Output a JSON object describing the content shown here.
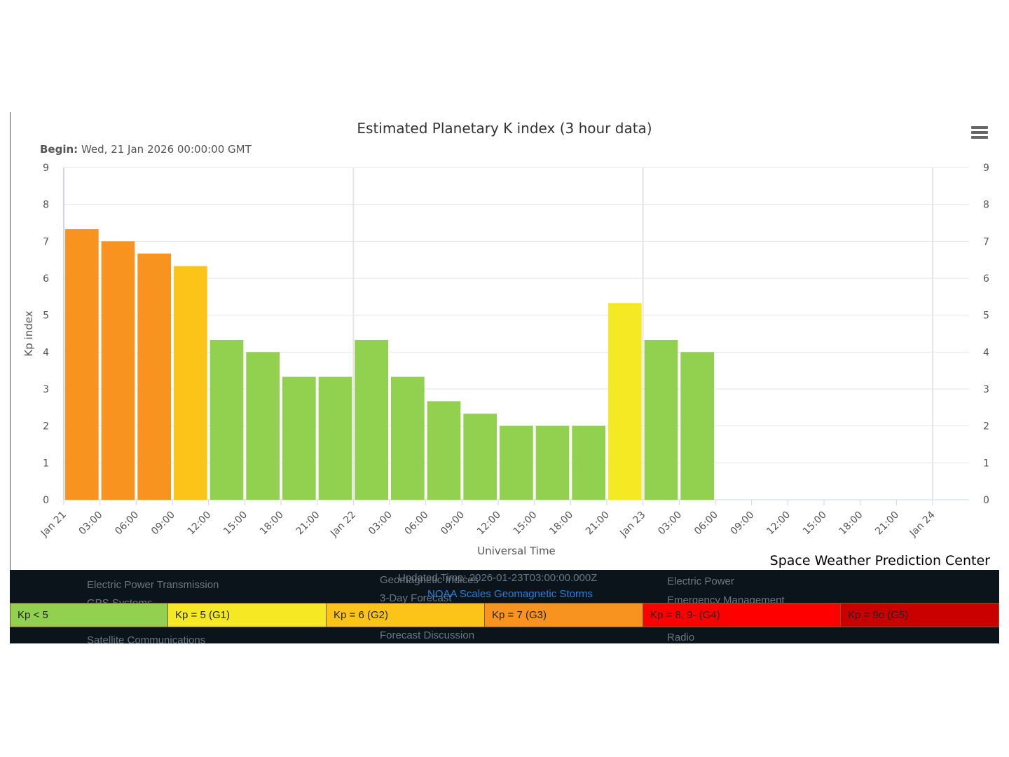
{
  "chart_data": {
    "type": "bar",
    "title": "Estimated Planetary K index (3 hour data)",
    "begin_label": "Begin:",
    "begin_value": "Wed, 21 Jan 2026 00:00:00 GMT",
    "ylabel": "Kp index",
    "xlabel": "Universal Time",
    "ylim": [
      0,
      9
    ],
    "y_ticks": [
      "0",
      "1",
      "2",
      "3",
      "4",
      "5",
      "6",
      "7",
      "8",
      "9"
    ],
    "x_tick_labels": [
      "Jan 21",
      "03:00",
      "06:00",
      "09:00",
      "12:00",
      "15:00",
      "18:00",
      "21:00",
      "Jan 22",
      "03:00",
      "06:00",
      "09:00",
      "12:00",
      "15:00",
      "18:00",
      "21:00",
      "Jan 23",
      "03:00",
      "06:00",
      "09:00",
      "12:00",
      "15:00",
      "18:00",
      "21:00",
      "Jan 24"
    ],
    "categories": [
      "Jan 21 00:00",
      "Jan 21 03:00",
      "Jan 21 06:00",
      "Jan 21 09:00",
      "Jan 21 12:00",
      "Jan 21 15:00",
      "Jan 21 18:00",
      "Jan 21 21:00",
      "Jan 22 00:00",
      "Jan 22 03:00",
      "Jan 22 06:00",
      "Jan 22 09:00",
      "Jan 22 12:00",
      "Jan 22 15:00",
      "Jan 22 18:00",
      "Jan 22 21:00",
      "Jan 23 00:00",
      "Jan 23 03:00"
    ],
    "values": [
      7.33,
      7.0,
      6.67,
      6.33,
      4.33,
      4.0,
      3.33,
      3.33,
      4.33,
      3.33,
      2.67,
      2.33,
      2.0,
      2.0,
      2.0,
      5.33,
      4.33,
      4.0
    ],
    "bar_colors": [
      "#f7931e",
      "#f7931e",
      "#f7931e",
      "#fcc419",
      "#92d050",
      "#92d050",
      "#92d050",
      "#92d050",
      "#92d050",
      "#92d050",
      "#92d050",
      "#92d050",
      "#92d050",
      "#92d050",
      "#92d050",
      "#f5e924",
      "#92d050",
      "#92d050"
    ],
    "grid": true
  },
  "credit": "Space Weather Prediction Center",
  "footer": {
    "updated": "Updated Time: 2026-01-23T03:00:00.000Z",
    "noaa_link": "NOAA Scales Geomagnetic Storms",
    "background_links": [
      "Electric Power Transmission",
      "GPS Systems",
      "Satellite Communications",
      "Geomagnetic Indices",
      "3-Day Forecast",
      "Forecast Discussion",
      "Electric Power",
      "Emergency Management",
      "Radio"
    ]
  },
  "scale": [
    {
      "label": "Kp < 5",
      "color": "#92d050"
    },
    {
      "label": "Kp = 5 (G1)",
      "color": "#f5e924"
    },
    {
      "label": "Kp = 6 (G2)",
      "color": "#fcc419"
    },
    {
      "label": "Kp = 7 (G3)",
      "color": "#f7931e"
    },
    {
      "label": "Kp = 8, 9- (G4)",
      "color": "#ff0000"
    },
    {
      "label": "Kp = 9o (G5)",
      "color": "#c80000"
    }
  ]
}
